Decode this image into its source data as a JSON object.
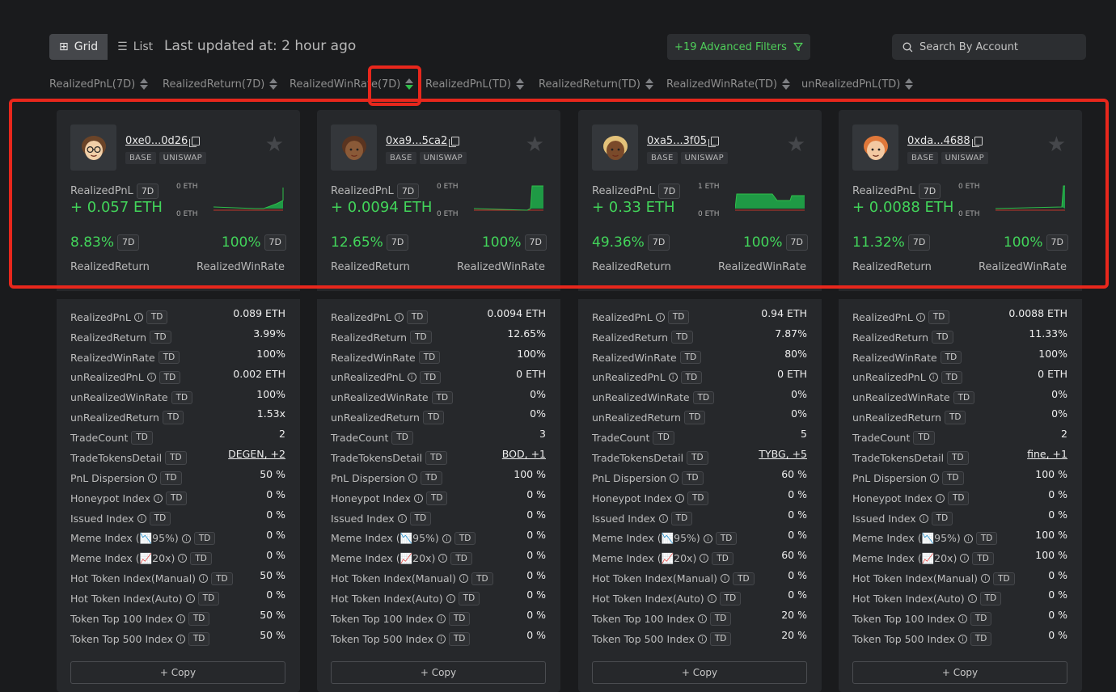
{
  "toolbar": {
    "grid_label": "Grid",
    "list_label": "List",
    "last_updated": "Last updated at: 2 hour ago",
    "advanced_filters": "+19 Advanced Filters",
    "search_placeholder": "Search By Account"
  },
  "sort_columns": [
    {
      "label": "RealizedPnL(7D)"
    },
    {
      "label": "RealizedReturn(7D)"
    },
    {
      "label": "RealizedWinRate(7D)",
      "active": true,
      "direction": "desc"
    },
    {
      "label": "RealizedPnL(TD)"
    },
    {
      "label": "RealizedReturn(TD)"
    },
    {
      "label": "RealizedWinRate(TD)"
    },
    {
      "label": "unRealizedPnL(TD)"
    }
  ],
  "labels": {
    "pnl": "RealizedPnL",
    "period_7d": "7D",
    "period_td": "TD",
    "realized_return": "RealizedReturn",
    "realized_winrate": "RealizedWinRate",
    "copy": "+ Copy"
  },
  "stat_labels": [
    "RealizedPnL",
    "RealizedReturn",
    "RealizedWinRate",
    "unRealizedPnL",
    "unRealizedWinRate",
    "unRealizedReturn",
    "TradeCount",
    "TradeTokensDetail",
    "PnL Dispersion",
    "Honeypot Index",
    "Issued Index",
    "Meme Index (📉95%)",
    "Meme Index (📈20x)",
    "Hot Token Index(Manual)",
    "Hot Token Index(Auto)",
    "Token Top 100 Index",
    "Token Top 500 Index"
  ],
  "stat_has_info": [
    true,
    false,
    false,
    true,
    false,
    false,
    false,
    false,
    true,
    true,
    true,
    true,
    true,
    true,
    true,
    true,
    true
  ],
  "colors": {
    "accent_green": "#42d45a",
    "highlight_red": "#e8271c",
    "chart_fill": "#1f9a45"
  },
  "cards": [
    {
      "address": "0xe0...0d26",
      "chain": "BASE",
      "dex": "UNISWAP",
      "avatar": "avatar-boy-glasses",
      "pnl_7d": "+ 0.057 ETH",
      "spark_top": "0 ETH",
      "spark_bot": "0 ETH",
      "return_7d": "8.83%",
      "winrate_7d": "100%",
      "stats": [
        "0.089 ETH",
        "3.99%",
        "100%",
        "0.002 ETH",
        "100%",
        "1.53x",
        "2",
        "DEGEN, +2",
        "50 %",
        "0 %",
        "0 %",
        "0 %",
        "0 %",
        "50 %",
        "0 %",
        "50 %",
        "50 %"
      ]
    },
    {
      "address": "0xa9...5ca2",
      "chain": "BASE",
      "dex": "UNISWAP",
      "avatar": "avatar-girl-curly",
      "pnl_7d": "+ 0.0094 ETH",
      "spark_top": "0 ETH",
      "spark_bot": "0 ETH",
      "return_7d": "12.65%",
      "winrate_7d": "100%",
      "stats": [
        "0.0094 ETH",
        "12.65%",
        "100%",
        "0 ETH",
        "0%",
        "0%",
        "3",
        "BOD, +1",
        "100 %",
        "0 %",
        "0 %",
        "0 %",
        "0 %",
        "0 %",
        "0 %",
        "0 %",
        "0 %"
      ]
    },
    {
      "address": "0xa5...3f05",
      "chain": "BASE",
      "dex": "UNISWAP",
      "avatar": "avatar-blonde-curly",
      "pnl_7d": "+ 0.33 ETH",
      "spark_top": "1 ETH",
      "spark_bot": "0 ETH",
      "return_7d": "49.36%",
      "winrate_7d": "100%",
      "stats": [
        "0.94 ETH",
        "7.87%",
        "80%",
        "0 ETH",
        "0%",
        "0%",
        "5",
        "TYBG, +5",
        "60 %",
        "0 %",
        "0 %",
        "0 %",
        "60 %",
        "0 %",
        "0 %",
        "20 %",
        "20 %"
      ]
    },
    {
      "address": "0xda...4688",
      "chain": "BASE",
      "dex": "UNISWAP",
      "avatar": "avatar-redhead-girl",
      "pnl_7d": "+ 0.0088 ETH",
      "spark_top": "0 ETH",
      "spark_bot": "0 ETH",
      "return_7d": "11.32%",
      "winrate_7d": "100%",
      "stats": [
        "0.0088 ETH",
        "11.33%",
        "100%",
        "0 ETH",
        "0%",
        "0%",
        "2",
        "fine, +1",
        "100 %",
        "0 %",
        "0 %",
        "100 %",
        "100 %",
        "0 %",
        "0 %",
        "0 %",
        "0 %"
      ]
    }
  ]
}
